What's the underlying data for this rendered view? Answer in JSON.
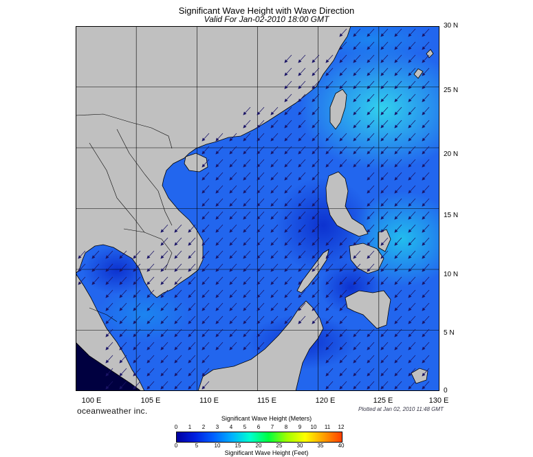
{
  "header": {
    "title": "Significant Wave Height with Wave Direction",
    "subtitle": "Valid For Jan-02-2010 18:00 GMT"
  },
  "map": {
    "lon_range": [
      100,
      130
    ],
    "lat_range": [
      0,
      30
    ],
    "lat_labels": [
      "30 N",
      "25 N",
      "20 N",
      "15 N",
      "10 N",
      "5 N",
      "0"
    ],
    "lon_labels": [
      "100 E",
      "105 E",
      "110 E",
      "115 E",
      "120 E",
      "125 E",
      "130 E"
    ],
    "land_color": "#c0c0c0",
    "sea_color": "#2266ee",
    "arrow_direction": "toward southwest"
  },
  "footer": {
    "brand": "oceanweather inc.",
    "plotted": "Plotted at Jan 02, 2010 11:48 GMT"
  },
  "legend": {
    "title_meters": "Significant Wave Height (Meters)",
    "title_feet": "Significant Wave Height (Feet)",
    "meter_ticks": [
      "0",
      "1",
      "2",
      "3",
      "4",
      "5",
      "6",
      "7",
      "8",
      "9",
      "10",
      "11",
      "12"
    ],
    "feet_ticks": [
      "0",
      "5",
      "10",
      "15",
      "20",
      "25",
      "30",
      "35",
      "40"
    ],
    "colors": [
      "#0000a0",
      "#0020e0",
      "#0060ff",
      "#00b0ff",
      "#00ffd0",
      "#00ff40",
      "#a0ff00",
      "#ffff00",
      "#ffa000",
      "#ff4000"
    ]
  }
}
